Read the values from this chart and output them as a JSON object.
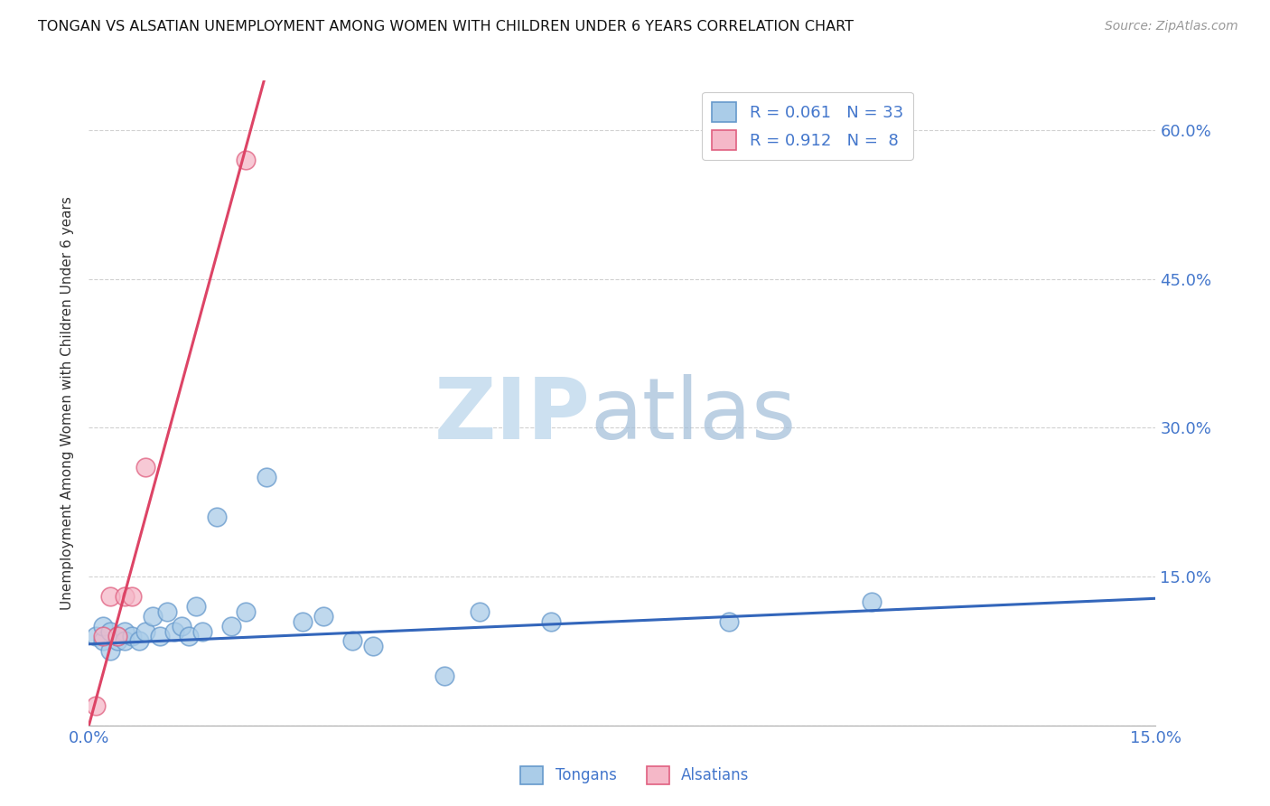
{
  "title": "TONGAN VS ALSATIAN UNEMPLOYMENT AMONG WOMEN WITH CHILDREN UNDER 6 YEARS CORRELATION CHART",
  "source": "Source: ZipAtlas.com",
  "ylabel": "Unemployment Among Women with Children Under 6 years",
  "xmin": 0.0,
  "xmax": 0.15,
  "ymin": 0.0,
  "ymax": 0.65,
  "xticks": [
    0.0,
    0.025,
    0.05,
    0.075,
    0.1,
    0.125,
    0.15
  ],
  "yticks": [
    0.0,
    0.15,
    0.3,
    0.45,
    0.6
  ],
  "tongan_R": "0.061",
  "tongan_N": "33",
  "alsatian_R": "0.912",
  "alsatian_N": "8",
  "tongan_color": "#aacce8",
  "alsatian_color": "#f5b8c8",
  "tongan_edge_color": "#6699cc",
  "alsatian_edge_color": "#e06080",
  "tongan_line_color": "#3366bb",
  "alsatian_line_color": "#dd4466",
  "tongan_scatter_x": [
    0.001,
    0.002,
    0.002,
    0.003,
    0.003,
    0.004,
    0.004,
    0.005,
    0.005,
    0.006,
    0.007,
    0.008,
    0.009,
    0.01,
    0.011,
    0.012,
    0.013,
    0.014,
    0.015,
    0.016,
    0.018,
    0.02,
    0.022,
    0.025,
    0.03,
    0.033,
    0.037,
    0.04,
    0.05,
    0.055,
    0.065,
    0.09,
    0.11
  ],
  "tongan_scatter_y": [
    0.09,
    0.085,
    0.1,
    0.095,
    0.075,
    0.085,
    0.09,
    0.095,
    0.085,
    0.09,
    0.085,
    0.095,
    0.11,
    0.09,
    0.115,
    0.095,
    0.1,
    0.09,
    0.12,
    0.095,
    0.21,
    0.1,
    0.115,
    0.25,
    0.105,
    0.11,
    0.085,
    0.08,
    0.05,
    0.115,
    0.105,
    0.105,
    0.125
  ],
  "alsatian_scatter_x": [
    0.001,
    0.002,
    0.003,
    0.004,
    0.005,
    0.006,
    0.008,
    0.022
  ],
  "alsatian_scatter_y": [
    0.02,
    0.09,
    0.13,
    0.09,
    0.13,
    0.13,
    0.26,
    0.57
  ],
  "tongan_trend_x": [
    0.0,
    0.15
  ],
  "tongan_trend_y": [
    0.082,
    0.128
  ],
  "alsatian_trend_x": [
    0.0,
    0.025
  ],
  "alsatian_trend_y": [
    0.0,
    0.66
  ],
  "watermark_zip": "ZIP",
  "watermark_atlas": "atlas",
  "background_color": "#ffffff",
  "grid_color": "#cccccc",
  "tick_color": "#4477cc",
  "label_color": "#333333"
}
